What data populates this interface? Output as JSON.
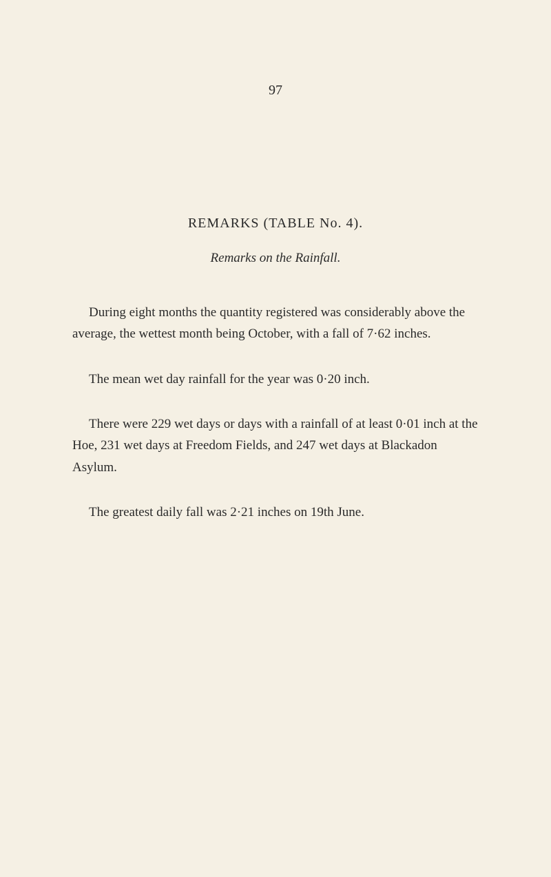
{
  "page_number": "97",
  "title": "REMARKS  (TABLE  No.  4).",
  "subtitle": "Remarks on the Rainfall.",
  "paragraphs": {
    "p1": "During eight months the quantity registered was consider­ably above the average, the wettest month being October, with a fall of 7·62 inches.",
    "p2": "The mean wet day rainfall for the year was 0·20 inch.",
    "p3": "There were 229 wet days or days with a rainfall of at least 0·01 inch at the Hoe, 231 wet days at Freedom Fields, and 247 wet days at Blackadon Asylum.",
    "p4": "The greatest daily fall was 2·21 inches on 19th June."
  }
}
